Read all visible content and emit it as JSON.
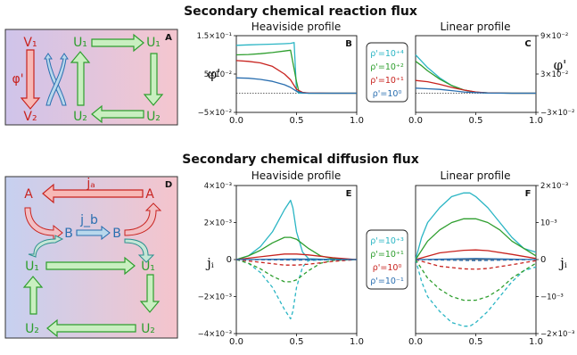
{
  "titles": {
    "top": "Secondary chemical reaction flux",
    "bottom": "Secondary chemical diffusion flux"
  },
  "panels": {
    "A": "A",
    "B": "B",
    "C": "C",
    "D": "D",
    "E": "E",
    "F": "F"
  },
  "diagram_a": {
    "v1": "V₁",
    "v2": "V₂",
    "phi": "φ'",
    "u1_left": "U₁",
    "u1_right": "U₁",
    "u2_left": "U₂",
    "u2_right": "U₂"
  },
  "diagram_d": {
    "a_left": "A",
    "a_right": "A",
    "ja": "jₐ",
    "jb": "j_b",
    "b_left": "B",
    "b_right": "B",
    "u1_left": "U₁",
    "u1_right": "U₁",
    "u2_left": "U₂",
    "u2_right": "U₂"
  },
  "colors": {
    "cyan": "#2ab5c4",
    "green": "#2e9e2e",
    "red": "#c8231f",
    "blue": "#2b6fb0"
  },
  "legend_top": [
    "ρ'=10⁺⁴",
    "ρ'=10⁺²",
    "ρ'=10⁺¹",
    "ρ'=10⁰"
  ],
  "legend_bottom": [
    "ρ'=10⁺³",
    "ρ'=10⁺¹",
    "ρ'=10⁰",
    "ρ'=10⁻¹"
  ],
  "chart_data": [
    {
      "id": "B",
      "type": "line",
      "title": "Heaviside profile",
      "ylabel": "φ'",
      "xlim": [
        0,
        1
      ],
      "ylim": [
        -0.05,
        0.15
      ],
      "xticks": [
        "0.0",
        "0.5",
        "1.0"
      ],
      "yticks": [
        "−5×10⁻²",
        "5×10⁻²",
        "1.5×10⁻¹"
      ],
      "series": [
        {
          "name": "ρ'=10⁺⁴",
          "color": "cyan",
          "x": [
            0,
            0.1,
            0.2,
            0.3,
            0.4,
            0.45,
            0.48,
            0.5,
            0.52,
            0.6,
            0.8,
            1.0
          ],
          "y": [
            0.125,
            0.126,
            0.127,
            0.128,
            0.129,
            0.13,
            0.132,
            0.005,
            0,
            0,
            0,
            0
          ]
        },
        {
          "name": "ρ'=10⁺²",
          "color": "green",
          "x": [
            0,
            0.1,
            0.2,
            0.3,
            0.4,
            0.45,
            0.5,
            0.52,
            0.6,
            0.8,
            1.0
          ],
          "y": [
            0.1,
            0.101,
            0.103,
            0.106,
            0.11,
            0.112,
            0.03,
            0.003,
            0,
            0,
            0
          ]
        },
        {
          "name": "ρ'=10⁺¹",
          "color": "red",
          "x": [
            0,
            0.1,
            0.2,
            0.3,
            0.4,
            0.45,
            0.5,
            0.55,
            0.6,
            0.8,
            1.0
          ],
          "y": [
            0.085,
            0.083,
            0.079,
            0.07,
            0.05,
            0.035,
            0.01,
            0.002,
            0.0005,
            0,
            0
          ]
        },
        {
          "name": "ρ'=10⁰",
          "color": "blue",
          "x": [
            0,
            0.1,
            0.2,
            0.3,
            0.4,
            0.45,
            0.5,
            0.55,
            0.6,
            0.8,
            1.0
          ],
          "y": [
            0.04,
            0.039,
            0.036,
            0.031,
            0.022,
            0.015,
            0.005,
            0.001,
            0,
            0,
            0
          ]
        }
      ]
    },
    {
      "id": "C",
      "type": "line",
      "title": "Linear profile",
      "ylabel": "φ'",
      "xlim": [
        0,
        1
      ],
      "ylim": [
        -0.03,
        0.09
      ],
      "xticks": [
        "0.0",
        "0.5",
        "1.0"
      ],
      "yticks": [
        "−3×10⁻²",
        "3×10⁻²",
        "9×10⁻²"
      ],
      "series": [
        {
          "name": "ρ'=10⁺⁴",
          "color": "cyan",
          "x": [
            0,
            0.05,
            0.1,
            0.2,
            0.3,
            0.4,
            0.5,
            0.6,
            0.8,
            1.0
          ],
          "y": [
            0.06,
            0.05,
            0.04,
            0.024,
            0.012,
            0.005,
            0.0015,
            0.0004,
            0,
            0
          ]
        },
        {
          "name": "ρ'=10⁺²",
          "color": "green",
          "x": [
            0,
            0.05,
            0.1,
            0.2,
            0.3,
            0.4,
            0.5,
            0.6,
            0.8,
            1.0
          ],
          "y": [
            0.05,
            0.043,
            0.035,
            0.022,
            0.012,
            0.005,
            0.0015,
            0.0004,
            0,
            0
          ]
        },
        {
          "name": "ρ'=10⁺¹",
          "color": "red",
          "x": [
            0,
            0.1,
            0.2,
            0.3,
            0.4,
            0.5,
            0.6,
            0.8,
            1.0
          ],
          "y": [
            0.02,
            0.018,
            0.014,
            0.009,
            0.005,
            0.002,
            0.0006,
            0,
            0
          ]
        },
        {
          "name": "ρ'=10⁰",
          "color": "blue",
          "x": [
            0,
            0.1,
            0.2,
            0.3,
            0.4,
            0.5,
            0.6,
            0.8,
            1.0
          ],
          "y": [
            0.008,
            0.007,
            0.006,
            0.004,
            0.002,
            0.001,
            0.0003,
            0,
            0
          ]
        }
      ]
    },
    {
      "id": "E",
      "type": "line",
      "title": "Heaviside profile",
      "ylabel": "jᵢ",
      "xlim": [
        0,
        1
      ],
      "ylim": [
        -0.004,
        0.004
      ],
      "xticks": [
        "0.0",
        "0.5",
        "1.0"
      ],
      "yticks": [
        "−4×10⁻³",
        "−2×10⁻³",
        "0",
        "2×10⁻³",
        "4×10⁻³"
      ],
      "series": [
        {
          "name": "ρ'=10⁺³ (jₐ)",
          "color": "cyan",
          "x": [
            0,
            0.1,
            0.2,
            0.3,
            0.35,
            0.4,
            0.45,
            0.47,
            0.5,
            0.55,
            0.6,
            0.8,
            1.0
          ],
          "y": [
            0,
            0.0002,
            0.0007,
            0.0015,
            0.0021,
            0.0027,
            0.0032,
            0.0028,
            0.0015,
            0.0004,
            5e-05,
            0,
            0
          ]
        },
        {
          "name": "ρ'=10⁺³ (j_b)",
          "color": "cyan",
          "dashed": true,
          "x": [
            0,
            0.1,
            0.2,
            0.3,
            0.35,
            0.4,
            0.45,
            0.47,
            0.5,
            0.55,
            0.6,
            0.8,
            1.0
          ],
          "y": [
            0,
            -0.0002,
            -0.0007,
            -0.0015,
            -0.0021,
            -0.0027,
            -0.0032,
            -0.0028,
            -0.0015,
            -0.0004,
            -5e-05,
            0,
            0
          ]
        },
        {
          "name": "ρ'=10⁺¹ (jₐ)",
          "color": "green",
          "x": [
            0,
            0.1,
            0.2,
            0.3,
            0.4,
            0.45,
            0.5,
            0.6,
            0.7,
            0.8,
            1.0
          ],
          "y": [
            0,
            0.0002,
            0.0005,
            0.0009,
            0.0012,
            0.0012,
            0.0011,
            0.0006,
            0.0002,
            5e-05,
            0
          ]
        },
        {
          "name": "ρ'=10⁺¹ (j_b)",
          "color": "green",
          "dashed": true,
          "x": [
            0,
            0.1,
            0.2,
            0.3,
            0.4,
            0.45,
            0.5,
            0.6,
            0.7,
            0.8,
            1.0
          ],
          "y": [
            0,
            -0.0002,
            -0.0005,
            -0.0009,
            -0.0012,
            -0.0012,
            -0.0011,
            -0.0006,
            -0.0002,
            -5e-05,
            0
          ]
        },
        {
          "name": "ρ'=10⁰ (jₐ)",
          "color": "red",
          "x": [
            0,
            0.2,
            0.4,
            0.5,
            0.6,
            0.8,
            1.0
          ],
          "y": [
            0,
            0.00015,
            0.0003,
            0.0003,
            0.00025,
            0.0001,
            0
          ]
        },
        {
          "name": "ρ'=10⁰ (j_b)",
          "color": "red",
          "dashed": true,
          "x": [
            0,
            0.2,
            0.4,
            0.5,
            0.6,
            0.8,
            1.0
          ],
          "y": [
            0,
            -0.00015,
            -0.0003,
            -0.0003,
            -0.00025,
            -0.0001,
            0
          ]
        },
        {
          "name": "ρ'=10⁻¹ (jₐ)",
          "color": "blue",
          "x": [
            0,
            0.5,
            1.0
          ],
          "y": [
            0,
            3e-05,
            0
          ]
        },
        {
          "name": "ρ'=10⁻¹ (j_b)",
          "color": "blue",
          "dashed": true,
          "x": [
            0,
            0.5,
            1.0
          ],
          "y": [
            0,
            -3e-05,
            0
          ]
        }
      ]
    },
    {
      "id": "F",
      "type": "line",
      "title": "Linear profile",
      "ylabel": "jᵢ",
      "xlim": [
        0,
        1
      ],
      "ylim": [
        -0.002,
        0.002
      ],
      "xticks": [
        "0.0",
        "0.5",
        "1.0"
      ],
      "yticks": [
        "−2×10⁻³",
        "−10⁻³",
        "0",
        "10⁻³",
        "2×10⁻³"
      ],
      "series": [
        {
          "name": "ρ'=10⁺³ (jₐ)",
          "color": "cyan",
          "x": [
            0,
            0.05,
            0.1,
            0.2,
            0.3,
            0.4,
            0.45,
            0.5,
            0.6,
            0.7,
            0.8,
            0.9,
            1.0
          ],
          "y": [
            0,
            0.0006,
            0.001,
            0.0014,
            0.0017,
            0.0018,
            0.0018,
            0.0017,
            0.0014,
            0.001,
            0.0006,
            0.0003,
            0.0002
          ]
        },
        {
          "name": "ρ'=10⁺³ (j_b)",
          "color": "cyan",
          "dashed": true,
          "x": [
            0,
            0.05,
            0.1,
            0.2,
            0.3,
            0.4,
            0.45,
            0.5,
            0.6,
            0.7,
            0.8,
            0.9,
            1.0
          ],
          "y": [
            0,
            -0.0006,
            -0.001,
            -0.0014,
            -0.0017,
            -0.0018,
            -0.0018,
            -0.0017,
            -0.0014,
            -0.001,
            -0.0006,
            -0.0003,
            -0.0002
          ]
        },
        {
          "name": "ρ'=10⁺¹ (jₐ)",
          "color": "green",
          "x": [
            0,
            0.1,
            0.2,
            0.3,
            0.4,
            0.5,
            0.6,
            0.7,
            0.8,
            0.9,
            1.0
          ],
          "y": [
            0,
            0.0005,
            0.0008,
            0.001,
            0.0011,
            0.0011,
            0.001,
            0.0008,
            0.0005,
            0.0003,
            0.0001
          ]
        },
        {
          "name": "ρ'=10⁺¹ (j_b)",
          "color": "green",
          "dashed": true,
          "x": [
            0,
            0.1,
            0.2,
            0.3,
            0.4,
            0.5,
            0.6,
            0.7,
            0.8,
            0.9,
            1.0
          ],
          "y": [
            0,
            -0.0005,
            -0.0008,
            -0.001,
            -0.0011,
            -0.0011,
            -0.001,
            -0.0008,
            -0.0005,
            -0.0003,
            -0.0001
          ]
        },
        {
          "name": "ρ'=10⁰ (jₐ)",
          "color": "red",
          "x": [
            0,
            0.2,
            0.4,
            0.5,
            0.6,
            0.8,
            1.0
          ],
          "y": [
            0,
            0.00018,
            0.00025,
            0.00026,
            0.00024,
            0.00014,
            3e-05
          ]
        },
        {
          "name": "ρ'=10⁰ (j_b)",
          "color": "red",
          "dashed": true,
          "x": [
            0,
            0.2,
            0.4,
            0.5,
            0.6,
            0.8,
            1.0
          ],
          "y": [
            0,
            -0.00018,
            -0.00025,
            -0.00026,
            -0.00024,
            -0.00014,
            -3e-05
          ]
        },
        {
          "name": "ρ'=10⁻¹ (jₐ)",
          "color": "blue",
          "x": [
            0,
            0.5,
            1.0
          ],
          "y": [
            0,
            3e-05,
            0
          ]
        },
        {
          "name": "ρ'=10⁻¹ (j_b)",
          "color": "blue",
          "dashed": true,
          "x": [
            0,
            0.5,
            1.0
          ],
          "y": [
            0,
            -3e-05,
            0
          ]
        }
      ]
    }
  ]
}
